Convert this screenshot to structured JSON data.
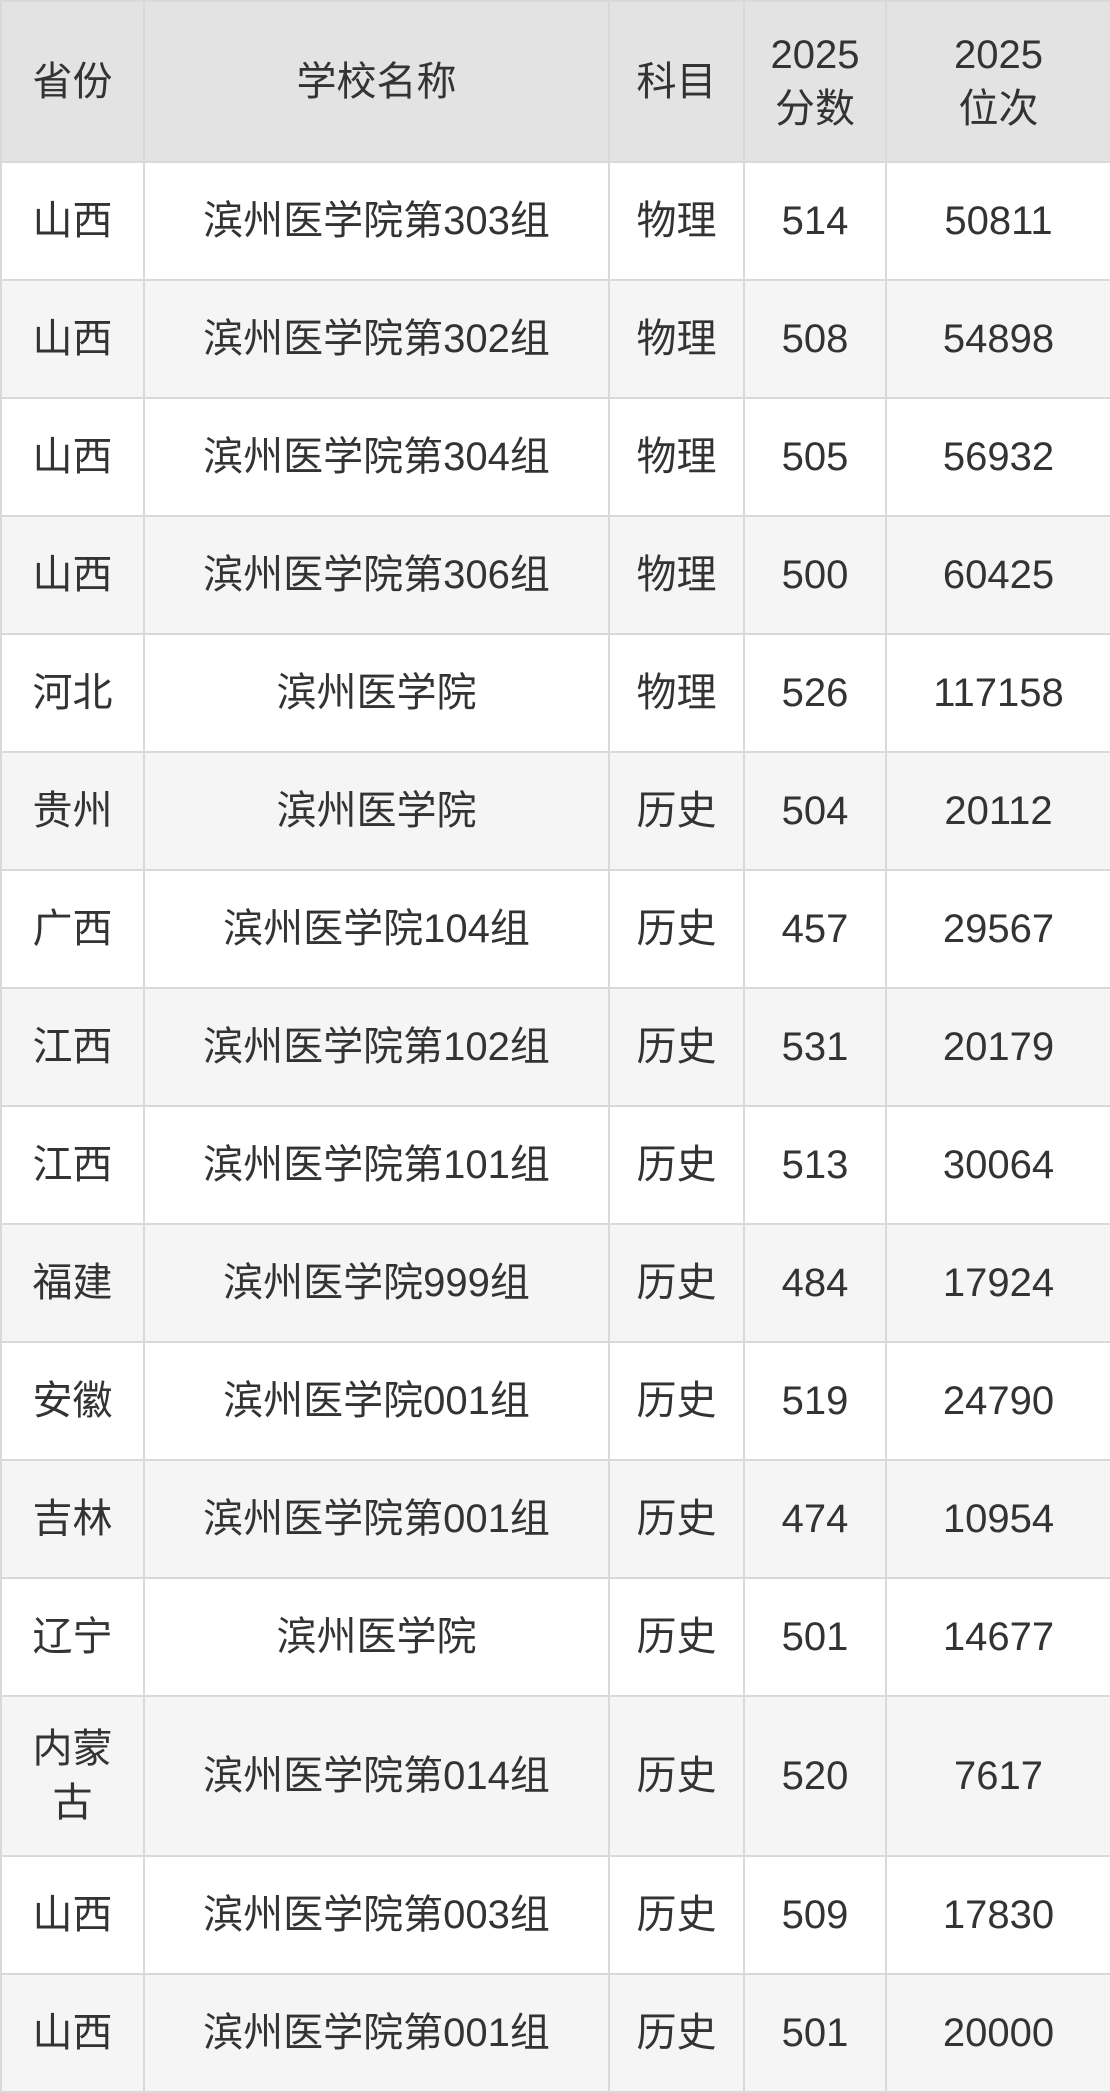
{
  "table": {
    "columns": [
      {
        "key": "province",
        "label": "省份"
      },
      {
        "key": "school",
        "label": "学校名称"
      },
      {
        "key": "subject",
        "label": "科目"
      },
      {
        "key": "score",
        "label": "2025\n分数"
      },
      {
        "key": "rank",
        "label": "2025\n位次"
      }
    ],
    "rows": [
      {
        "province": "山西",
        "school": "滨州医学院第303组",
        "subject": "物理",
        "score": "514",
        "rank": "50811"
      },
      {
        "province": "山西",
        "school": "滨州医学院第302组",
        "subject": "物理",
        "score": "508",
        "rank": "54898"
      },
      {
        "province": "山西",
        "school": "滨州医学院第304组",
        "subject": "物理",
        "score": "505",
        "rank": "56932"
      },
      {
        "province": "山西",
        "school": "滨州医学院第306组",
        "subject": "物理",
        "score": "500",
        "rank": "60425"
      },
      {
        "province": "河北",
        "school": "滨州医学院",
        "subject": "物理",
        "score": "526",
        "rank": "117158"
      },
      {
        "province": "贵州",
        "school": "滨州医学院",
        "subject": "历史",
        "score": "504",
        "rank": "20112"
      },
      {
        "province": "广西",
        "school": "滨州医学院104组",
        "subject": "历史",
        "score": "457",
        "rank": "29567"
      },
      {
        "province": "江西",
        "school": "滨州医学院第102组",
        "subject": "历史",
        "score": "531",
        "rank": "20179"
      },
      {
        "province": "江西",
        "school": "滨州医学院第101组",
        "subject": "历史",
        "score": "513",
        "rank": "30064"
      },
      {
        "province": "福建",
        "school": "滨州医学院999组",
        "subject": "历史",
        "score": "484",
        "rank": "17924"
      },
      {
        "province": "安徽",
        "school": "滨州医学院001组",
        "subject": "历史",
        "score": "519",
        "rank": "24790"
      },
      {
        "province": "吉林",
        "school": "滨州医学院第001组",
        "subject": "历史",
        "score": "474",
        "rank": "10954"
      },
      {
        "province": "辽宁",
        "school": "滨州医学院",
        "subject": "历史",
        "score": "501",
        "rank": "14677"
      },
      {
        "province": "内蒙古",
        "school": "滨州医学院第014组",
        "subject": "历史",
        "score": "520",
        "rank": "7617"
      },
      {
        "province": "山西",
        "school": "滨州医学院第003组",
        "subject": "历史",
        "score": "509",
        "rank": "17830"
      },
      {
        "province": "山西",
        "school": "滨州医学院第001组",
        "subject": "历史",
        "score": "501",
        "rank": "20000"
      }
    ]
  },
  "colors": {
    "header_bg": "#e3e3e3",
    "row_alt_bg": "#f5f5f5",
    "row_bg": "#ffffff",
    "border": "#d9d9d9",
    "text": "#333333"
  }
}
